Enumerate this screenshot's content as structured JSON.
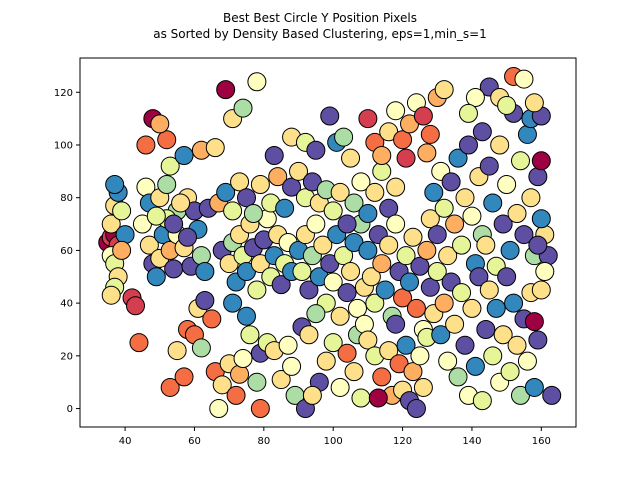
{
  "chart_data": {
    "type": "scatter",
    "title": "Best Best Circle Y Position Pixels",
    "subtitle": "as Sorted by Density Based Clustering, eps=1,min_s=1",
    "xlabel": "",
    "ylabel": "",
    "xlim": [
      27,
      170
    ],
    "ylim": [
      -7,
      133
    ],
    "xticks": [
      40,
      60,
      80,
      100,
      120,
      140,
      160
    ],
    "yticks": [
      0,
      20,
      40,
      60,
      80,
      100,
      120
    ],
    "grid": false,
    "legend": "none",
    "marker": "circle",
    "marker_edge_color": "#000000",
    "colormap": [
      "#9e0142",
      "#d53e4f",
      "#f46d43",
      "#fdae61",
      "#fee08b",
      "#ffffbf",
      "#e6f598",
      "#abdda4",
      "#66c2a5",
      "#3288bd",
      "#5e4fa2"
    ],
    "points": [
      [
        35,
        63,
        0
      ],
      [
        36,
        65,
        1
      ],
      [
        37,
        66,
        0
      ],
      [
        38,
        62,
        1
      ],
      [
        36,
        70,
        4
      ],
      [
        37,
        77,
        4
      ],
      [
        38,
        82,
        9
      ],
      [
        37,
        85,
        9
      ],
      [
        39,
        75,
        6
      ],
      [
        36,
        58,
        5
      ],
      [
        37,
        55,
        6
      ],
      [
        38,
        50,
        4
      ],
      [
        37,
        46,
        6
      ],
      [
        36,
        43,
        4
      ],
      [
        40,
        66,
        9
      ],
      [
        39,
        60,
        3
      ],
      [
        42,
        42,
        1
      ],
      [
        43,
        39,
        1
      ],
      [
        44,
        25,
        2
      ],
      [
        46,
        100,
        2
      ],
      [
        48,
        110,
        0
      ],
      [
        52,
        102,
        2
      ],
      [
        50,
        108,
        3
      ],
      [
        53,
        92,
        6
      ],
      [
        57,
        96,
        9
      ],
      [
        55,
        75,
        7
      ],
      [
        58,
        80,
        4
      ],
      [
        60,
        75,
        10
      ],
      [
        62,
        98,
        3
      ],
      [
        66,
        99,
        4
      ],
      [
        45,
        70,
        5
      ],
      [
        47,
        62,
        4
      ],
      [
        48,
        55,
        10
      ],
      [
        49,
        50,
        9
      ],
      [
        50,
        57,
        4
      ],
      [
        51,
        66,
        9
      ],
      [
        52,
        72,
        6
      ],
      [
        53,
        60,
        3
      ],
      [
        54,
        53,
        10
      ],
      [
        55,
        66,
        5
      ],
      [
        57,
        61,
        4
      ],
      [
        59,
        54,
        10
      ],
      [
        61,
        68,
        9
      ],
      [
        62,
        58,
        7
      ],
      [
        63,
        52,
        9
      ],
      [
        64,
        76,
        10
      ],
      [
        46,
        84,
        5
      ],
      [
        47,
        78,
        9
      ],
      [
        49,
        73,
        6
      ],
      [
        50,
        80,
        4
      ],
      [
        52,
        85,
        7
      ],
      [
        54,
        70,
        10
      ],
      [
        56,
        78,
        4
      ],
      [
        58,
        65,
        10
      ],
      [
        53,
        8,
        2
      ],
      [
        57,
        12,
        2
      ],
      [
        55,
        22,
        4
      ],
      [
        58,
        30,
        2
      ],
      [
        60,
        28,
        2
      ],
      [
        61,
        38,
        4
      ],
      [
        62,
        23,
        7
      ],
      [
        63,
        41,
        10
      ],
      [
        65,
        34,
        2
      ],
      [
        66,
        14,
        2
      ],
      [
        67,
        0,
        5
      ],
      [
        68,
        9,
        4
      ],
      [
        70,
        17,
        4
      ],
      [
        71,
        40,
        9
      ],
      [
        72,
        5,
        2
      ],
      [
        73,
        13,
        3
      ],
      [
        74,
        19,
        5
      ],
      [
        75,
        35,
        9
      ],
      [
        76,
        28,
        6
      ],
      [
        78,
        10,
        7
      ],
      [
        79,
        0,
        2
      ],
      [
        79,
        21,
        10
      ],
      [
        81,
        25,
        6
      ],
      [
        83,
        22,
        4
      ],
      [
        85,
        11,
        4
      ],
      [
        88,
        16,
        5
      ],
      [
        89,
        5,
        7
      ],
      [
        87,
        24,
        5
      ],
      [
        68,
        60,
        10
      ],
      [
        70,
        55,
        4
      ],
      [
        71,
        63,
        7
      ],
      [
        72,
        48,
        9
      ],
      [
        73,
        66,
        4
      ],
      [
        74,
        58,
        6
      ],
      [
        75,
        52,
        9
      ],
      [
        76,
        70,
        4
      ],
      [
        77,
        61,
        10
      ],
      [
        78,
        45,
        6
      ],
      [
        79,
        55,
        4
      ],
      [
        80,
        64,
        10
      ],
      [
        81,
        72,
        5
      ],
      [
        82,
        50,
        6
      ],
      [
        83,
        58,
        9
      ],
      [
        84,
        66,
        4
      ],
      [
        85,
        47,
        10
      ],
      [
        86,
        55,
        6
      ],
      [
        87,
        63,
        5
      ],
      [
        88,
        52,
        9
      ],
      [
        67,
        78,
        3
      ],
      [
        69,
        82,
        9
      ],
      [
        71,
        75,
        6
      ],
      [
        73,
        86,
        4
      ],
      [
        75,
        80,
        10
      ],
      [
        77,
        74,
        7
      ],
      [
        79,
        85,
        4
      ],
      [
        82,
        78,
        6
      ],
      [
        84,
        88,
        3
      ],
      [
        86,
        76,
        9
      ],
      [
        88,
        84,
        10
      ],
      [
        90,
        90,
        4
      ],
      [
        92,
        80,
        6
      ],
      [
        94,
        86,
        10
      ],
      [
        96,
        78,
        4
      ],
      [
        98,
        83,
        7
      ],
      [
        69,
        121,
        0
      ],
      [
        71,
        110,
        4
      ],
      [
        74,
        114,
        7
      ],
      [
        78,
        124,
        5
      ],
      [
        83,
        96,
        10
      ],
      [
        88,
        103,
        4
      ],
      [
        92,
        101,
        6
      ],
      [
        95,
        98,
        10
      ],
      [
        99,
        111,
        10
      ],
      [
        101,
        101,
        9
      ],
      [
        103,
        103,
        7
      ],
      [
        105,
        95,
        4
      ],
      [
        90,
        60,
        9
      ],
      [
        91,
        52,
        6
      ],
      [
        92,
        66,
        4
      ],
      [
        93,
        45,
        10
      ],
      [
        94,
        58,
        7
      ],
      [
        95,
        70,
        5
      ],
      [
        96,
        50,
        9
      ],
      [
        97,
        62,
        4
      ],
      [
        98,
        40,
        6
      ],
      [
        99,
        55,
        10
      ],
      [
        100,
        48,
        5
      ],
      [
        101,
        66,
        9
      ],
      [
        102,
        35,
        4
      ],
      [
        103,
        58,
        6
      ],
      [
        104,
        44,
        10
      ],
      [
        105,
        52,
        4
      ],
      [
        106,
        63,
        9
      ],
      [
        107,
        38,
        5
      ],
      [
        108,
        70,
        7
      ],
      [
        109,
        46,
        4
      ],
      [
        91,
        31,
        10
      ],
      [
        93,
        28,
        4
      ],
      [
        95,
        36,
        7
      ],
      [
        96,
        10,
        10
      ],
      [
        98,
        18,
        4
      ],
      [
        100,
        25,
        6
      ],
      [
        102,
        8,
        5
      ],
      [
        104,
        21,
        2
      ],
      [
        106,
        14,
        4
      ],
      [
        107,
        28,
        7
      ],
      [
        108,
        4,
        6
      ],
      [
        109,
        32,
        5
      ],
      [
        92,
        0,
        10
      ],
      [
        94,
        5,
        4
      ],
      [
        100,
        75,
        6
      ],
      [
        102,
        82,
        4
      ],
      [
        104,
        70,
        10
      ],
      [
        106,
        78,
        7
      ],
      [
        108,
        86,
        5
      ],
      [
        110,
        74,
        9
      ],
      [
        112,
        82,
        4
      ],
      [
        114,
        90,
        6
      ],
      [
        116,
        76,
        10
      ],
      [
        118,
        84,
        4
      ],
      [
        110,
        110,
        1
      ],
      [
        112,
        101,
        2
      ],
      [
        114,
        96,
        3
      ],
      [
        116,
        105,
        4
      ],
      [
        118,
        113,
        5
      ],
      [
        120,
        102,
        2
      ],
      [
        122,
        108,
        3
      ],
      [
        124,
        116,
        5
      ],
      [
        126,
        111,
        1
      ],
      [
        128,
        104,
        2
      ],
      [
        130,
        118,
        3
      ],
      [
        132,
        121,
        4
      ],
      [
        127,
        97,
        3
      ],
      [
        121,
        95,
        1
      ],
      [
        110,
        60,
        9
      ],
      [
        111,
        50,
        4
      ],
      [
        112,
        40,
        6
      ],
      [
        113,
        66,
        10
      ],
      [
        114,
        55,
        3
      ],
      [
        115,
        45,
        9
      ],
      [
        116,
        62,
        4
      ],
      [
        117,
        35,
        7
      ],
      [
        118,
        70,
        5
      ],
      [
        119,
        52,
        10
      ],
      [
        120,
        42,
        2
      ],
      [
        121,
        58,
        6
      ],
      [
        122,
        48,
        9
      ],
      [
        123,
        65,
        4
      ],
      [
        124,
        38,
        2
      ],
      [
        125,
        54,
        10
      ],
      [
        126,
        30,
        5
      ],
      [
        127,
        60,
        3
      ],
      [
        110,
        26,
        4
      ],
      [
        112,
        20,
        6
      ],
      [
        114,
        12,
        2
      ],
      [
        116,
        22,
        4
      ],
      [
        117,
        5,
        3
      ],
      [
        118,
        32,
        10
      ],
      [
        119,
        17,
        2
      ],
      [
        120,
        7,
        4
      ],
      [
        121,
        24,
        9
      ],
      [
        122,
        3,
        10
      ],
      [
        123,
        14,
        3
      ],
      [
        124,
        0,
        10
      ],
      [
        125,
        20,
        5
      ],
      [
        126,
        8,
        4
      ],
      [
        127,
        27,
        6
      ],
      [
        113,
        4,
        0
      ],
      [
        128,
        72,
        4
      ],
      [
        129,
        82,
        9
      ],
      [
        130,
        66,
        10
      ],
      [
        131,
        90,
        5
      ],
      [
        132,
        76,
        6
      ],
      [
        133,
        58,
        4
      ],
      [
        134,
        86,
        10
      ],
      [
        135,
        70,
        3
      ],
      [
        136,
        95,
        9
      ],
      [
        137,
        62,
        6
      ],
      [
        138,
        80,
        4
      ],
      [
        139,
        100,
        10
      ],
      [
        140,
        73,
        5
      ],
      [
        141,
        55,
        9
      ],
      [
        142,
        88,
        4
      ],
      [
        143,
        66,
        7
      ],
      [
        128,
        46,
        10
      ],
      [
        129,
        36,
        4
      ],
      [
        130,
        52,
        6
      ],
      [
        131,
        28,
        9
      ],
      [
        132,
        40,
        3
      ],
      [
        133,
        18,
        5
      ],
      [
        134,
        48,
        10
      ],
      [
        135,
        32,
        4
      ],
      [
        136,
        12,
        7
      ],
      [
        137,
        44,
        6
      ],
      [
        138,
        24,
        10
      ],
      [
        139,
        5,
        5
      ],
      [
        140,
        38,
        4
      ],
      [
        141,
        16,
        9
      ],
      [
        142,
        50,
        10
      ],
      [
        143,
        3,
        6
      ],
      [
        144,
        62,
        4
      ],
      [
        145,
        92,
        10
      ],
      [
        146,
        78,
        9
      ],
      [
        147,
        54,
        6
      ],
      [
        148,
        100,
        4
      ],
      [
        149,
        70,
        10
      ],
      [
        150,
        85,
        5
      ],
      [
        151,
        60,
        9
      ],
      [
        152,
        112,
        10
      ],
      [
        153,
        74,
        4
      ],
      [
        154,
        94,
        6
      ],
      [
        155,
        66,
        10
      ],
      [
        156,
        104,
        9
      ],
      [
        157,
        80,
        4
      ],
      [
        158,
        58,
        7
      ],
      [
        159,
        88,
        10
      ],
      [
        144,
        30,
        10
      ],
      [
        145,
        45,
        4
      ],
      [
        146,
        20,
        6
      ],
      [
        147,
        38,
        9
      ],
      [
        148,
        10,
        5
      ],
      [
        149,
        28,
        4
      ],
      [
        150,
        50,
        10
      ],
      [
        151,
        14,
        6
      ],
      [
        152,
        40,
        9
      ],
      [
        153,
        24,
        4
      ],
      [
        154,
        5,
        7
      ],
      [
        155,
        34,
        10
      ],
      [
        156,
        18,
        5
      ],
      [
        157,
        44,
        4
      ],
      [
        158,
        8,
        9
      ],
      [
        159,
        26,
        10
      ],
      [
        145,
        122,
        10
      ],
      [
        148,
        118,
        4
      ],
      [
        152,
        126,
        2
      ],
      [
        150,
        115,
        6
      ],
      [
        155,
        125,
        5
      ],
      [
        157,
        110,
        9
      ],
      [
        160,
        111,
        10
      ],
      [
        158,
        116,
        4
      ],
      [
        143,
        105,
        10
      ],
      [
        141,
        118,
        5
      ],
      [
        139,
        112,
        6
      ],
      [
        160,
        94,
        0
      ],
      [
        162,
        58,
        10
      ],
      [
        161,
        66,
        4
      ],
      [
        160,
        72,
        9
      ],
      [
        163,
        5,
        10
      ],
      [
        158,
        33,
        0
      ],
      [
        160,
        45,
        4
      ],
      [
        161,
        52,
        5
      ],
      [
        159,
        62,
        10
      ]
    ]
  }
}
